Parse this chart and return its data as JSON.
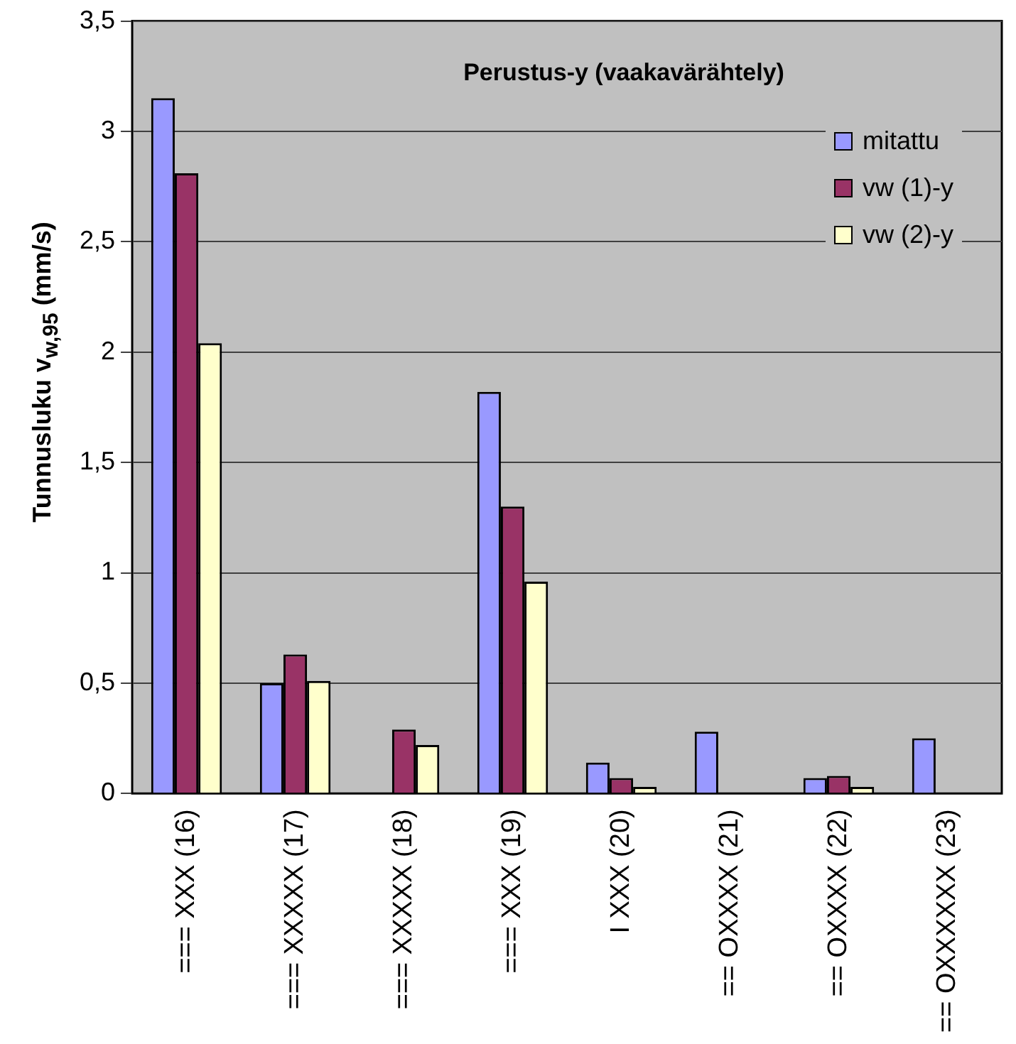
{
  "chart_data": {
    "type": "bar",
    "title": "Perustus-y (vaakavärähtely)",
    "ylabel": "Tunnusluku v$_{w,95}$ (mm/s)",
    "categories": [
      "=== XXX (16)",
      "=== XXXXX (17)",
      "=== XXXXX (18)",
      "=== XXX (19)",
      "I XXX (20)",
      "== OXXXX (21)",
      "== OXXXX (22)",
      "== OXXXXXX (23)"
    ],
    "series": [
      {
        "name": "mitattu",
        "color": "#9999ff",
        "values": [
          3.15,
          0.5,
          null,
          1.82,
          0.14,
          0.28,
          0.07,
          0.25
        ]
      },
      {
        "name": "vw (1)-y",
        "color": "#993366",
        "values": [
          2.81,
          0.63,
          0.29,
          1.3,
          0.07,
          null,
          0.08,
          null
        ]
      },
      {
        "name": "vw (2)-y",
        "color": "#ffffcc",
        "values": [
          2.04,
          0.51,
          0.22,
          0.96,
          0.03,
          null,
          0.03,
          null
        ]
      }
    ],
    "ylim": [
      0,
      3.5
    ],
    "yticks": [
      {
        "value": 0,
        "label": "0"
      },
      {
        "value": 0.5,
        "label": "0,5"
      },
      {
        "value": 1,
        "label": "1"
      },
      {
        "value": 1.5,
        "label": "1,5"
      },
      {
        "value": 2,
        "label": "2"
      },
      {
        "value": 2.5,
        "label": "2,5"
      },
      {
        "value": 3,
        "label": "3"
      },
      {
        "value": 3.5,
        "label": "3,5"
      }
    ],
    "grid": "y",
    "legend": "top right"
  }
}
